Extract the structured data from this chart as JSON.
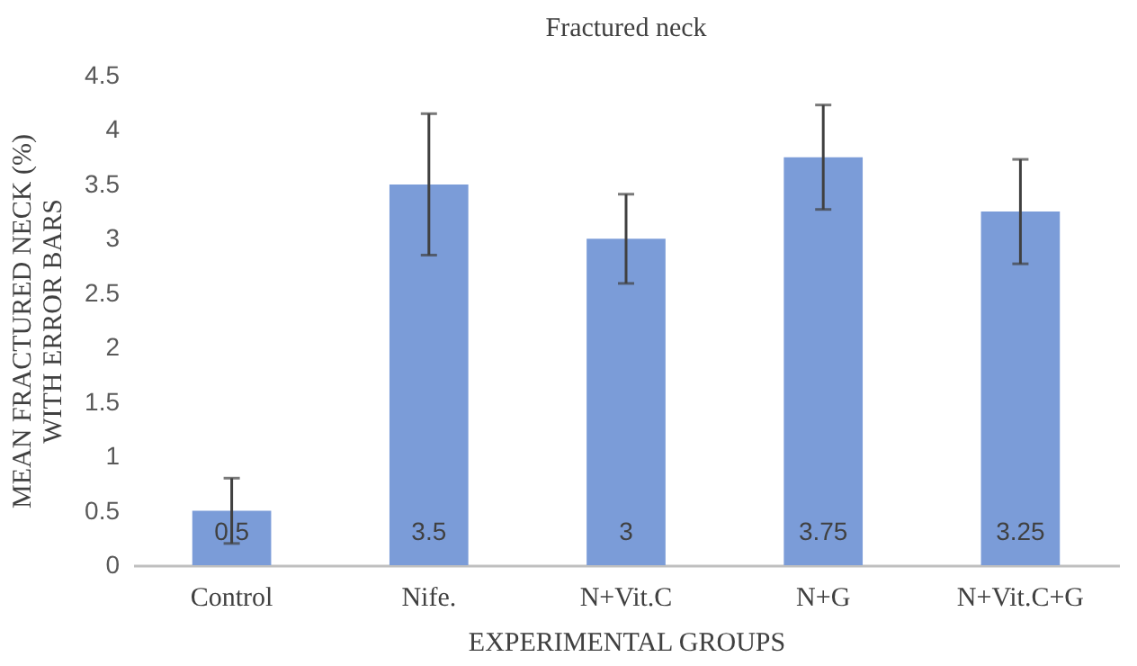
{
  "chart_data": {
    "type": "bar",
    "title": "Fractured neck",
    "xlabel": "EXPERIMENTAL GROUPS",
    "ylabel": "MEAN FRACTURED NECK (%)\nWITH ERROR BARS",
    "categories": [
      "Control",
      "Nife.",
      "N+Vit.C",
      "N+G",
      "N+Vit.C+G"
    ],
    "values": [
      0.5,
      3.5,
      3,
      3.75,
      3.25
    ],
    "errors": [
      0.3,
      0.65,
      0.41,
      0.48,
      0.48
    ],
    "color": "#7b9cd8",
    "ylim": [
      0,
      4.5
    ],
    "yticks": [
      0,
      0.5,
      1,
      1.5,
      2,
      2.5,
      3,
      3.5,
      4,
      4.5
    ],
    "grid": false,
    "data_labels": true
  }
}
